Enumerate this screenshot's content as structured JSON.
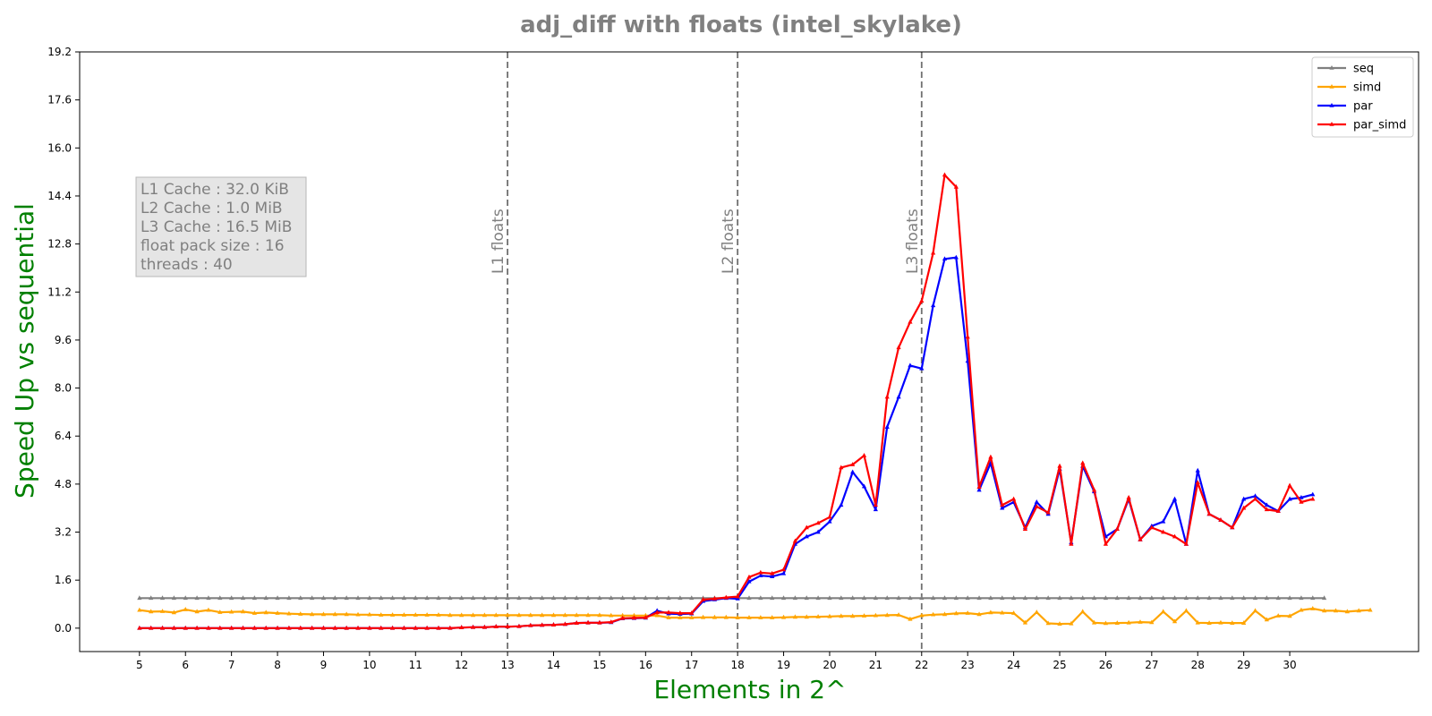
{
  "chart_data": {
    "type": "line",
    "title": "adj_diff with floats  (intel_skylake)",
    "xlabel": "Elements in 2^",
    "ylabel": "Speed Up vs sequential",
    "xlim": [
      3.7,
      32.8
    ],
    "ylim": [
      -0.78,
      19.2
    ],
    "x_ticks": [
      5,
      6,
      7,
      8,
      9,
      10,
      11,
      12,
      13,
      14,
      15,
      16,
      17,
      18,
      19,
      20,
      21,
      22,
      23,
      24,
      25,
      26,
      27,
      28,
      29,
      30
    ],
    "y_ticks": [
      0.0,
      1.6,
      3.2,
      4.8,
      6.4,
      8.0,
      9.6,
      11.2,
      12.8,
      14.4,
      16.0,
      17.6,
      19.2
    ],
    "y_tick_labels": [
      "0.0",
      "1.6",
      "3.2",
      "4.8",
      "6.4",
      "8.0",
      "9.6",
      "11.2",
      "12.8",
      "14.4",
      "16.0",
      "17.6",
      "19.2"
    ],
    "x_start": 5,
    "x_step": 0.25,
    "legend_position": "top-right",
    "grid": false,
    "vlines": [
      {
        "x": 13,
        "label": "L1 floats"
      },
      {
        "x": 18,
        "label": "L2 floats"
      },
      {
        "x": 22,
        "label": "L3 floats"
      }
    ],
    "info_box": [
      "L1 Cache : 32.0 KiB",
      "L2 Cache : 1.0 MiB",
      "L3 Cache : 16.5 MiB",
      "float pack size : 16",
      "threads : 40"
    ],
    "series": [
      {
        "name": "seq",
        "color": "#808080",
        "values": [
          1.0,
          1.0,
          1.0,
          1.0,
          1.0,
          1.0,
          1.0,
          1.0,
          1.0,
          1.0,
          1.0,
          1.0,
          1.0,
          1.0,
          1.0,
          1.0,
          1.0,
          1.0,
          1.0,
          1.0,
          1.0,
          1.0,
          1.0,
          1.0,
          1.0,
          1.0,
          1.0,
          1.0,
          1.0,
          1.0,
          1.0,
          1.0,
          1.0,
          1.0,
          1.0,
          1.0,
          1.0,
          1.0,
          1.0,
          1.0,
          1.0,
          1.0,
          1.0,
          1.0,
          1.0,
          1.0,
          1.0,
          1.0,
          1.0,
          1.0,
          1.0,
          1.0,
          1.0,
          1.0,
          1.0,
          1.0,
          1.0,
          1.0,
          1.0,
          1.0,
          1.0,
          1.0,
          1.0,
          1.0,
          1.0,
          1.0,
          1.0,
          1.0,
          1.0,
          1.0,
          1.0,
          1.0,
          1.0,
          1.0,
          1.0,
          1.0,
          1.0,
          1.0,
          1.0,
          1.0,
          1.0,
          1.0,
          1.0,
          1.0,
          1.0,
          1.0,
          1.0,
          1.0,
          1.0,
          1.0,
          1.0,
          1.0,
          1.0,
          1.0,
          1.0,
          1.0,
          1.0,
          1.0,
          1.0,
          1.0,
          1.0,
          1.0,
          1.0,
          1.0
        ]
      },
      {
        "name": "simd",
        "color": "#ffa500",
        "values": [
          0.6,
          0.55,
          0.56,
          0.52,
          0.62,
          0.55,
          0.6,
          0.53,
          0.54,
          0.55,
          0.5,
          0.52,
          0.5,
          0.48,
          0.47,
          0.46,
          0.46,
          0.46,
          0.46,
          0.45,
          0.45,
          0.44,
          0.44,
          0.44,
          0.44,
          0.44,
          0.44,
          0.43,
          0.43,
          0.43,
          0.43,
          0.43,
          0.43,
          0.43,
          0.43,
          0.43,
          0.43,
          0.43,
          0.43,
          0.43,
          0.43,
          0.42,
          0.42,
          0.42,
          0.42,
          0.42,
          0.35,
          0.35,
          0.35,
          0.36,
          0.36,
          0.36,
          0.35,
          0.35,
          0.35,
          0.35,
          0.36,
          0.37,
          0.37,
          0.38,
          0.39,
          0.4,
          0.4,
          0.41,
          0.42,
          0.43,
          0.44,
          0.3,
          0.42,
          0.45,
          0.46,
          0.49,
          0.5,
          0.46,
          0.52,
          0.51,
          0.5,
          0.18,
          0.53,
          0.16,
          0.14,
          0.15,
          0.55,
          0.18,
          0.16,
          0.17,
          0.18,
          0.2,
          0.19,
          0.55,
          0.22,
          0.58,
          0.18,
          0.17,
          0.18,
          0.17,
          0.17,
          0.58,
          0.28,
          0.41,
          0.4,
          0.6,
          0.65,
          0.58,
          0.58,
          0.55,
          0.58,
          0.6
        ]
      },
      {
        "name": "par",
        "color": "#0000ff",
        "values": [
          0.0,
          0.0,
          0.0,
          0.0,
          0.0,
          0.0,
          0.0,
          0.0,
          0.0,
          0.0,
          0.0,
          0.0,
          0.0,
          0.0,
          0.0,
          0.0,
          0.0,
          0.0,
          0.0,
          0.0,
          0.0,
          0.0,
          0.0,
          0.0,
          0.0,
          0.0,
          0.0,
          0.0,
          0.02,
          0.03,
          0.03,
          0.05,
          0.05,
          0.06,
          0.09,
          0.1,
          0.11,
          0.13,
          0.17,
          0.18,
          0.18,
          0.19,
          0.32,
          0.33,
          0.34,
          0.58,
          0.48,
          0.47,
          0.48,
          0.9,
          0.95,
          1.0,
          0.98,
          1.55,
          1.75,
          1.72,
          1.82,
          2.8,
          3.05,
          3.2,
          3.55,
          4.1,
          5.2,
          4.72,
          3.95,
          6.7,
          7.7,
          8.75,
          8.65,
          10.75,
          12.3,
          12.35,
          8.9,
          4.6,
          5.5,
          4.0,
          4.2,
          3.35,
          4.2,
          3.8,
          5.3,
          2.85,
          5.4,
          4.55,
          3.05,
          3.3,
          4.3,
          2.95,
          3.4,
          3.55,
          4.3,
          2.8,
          5.25,
          3.8,
          3.6,
          3.35,
          4.3,
          4.4,
          4.1,
          3.9,
          4.3,
          4.35,
          4.45
        ]
      },
      {
        "name": "par_simd",
        "color": "#ff0000",
        "values": [
          0.0,
          0.0,
          0.0,
          0.0,
          0.0,
          0.0,
          0.0,
          0.0,
          0.0,
          0.0,
          0.0,
          0.0,
          0.0,
          0.0,
          0.0,
          0.0,
          0.0,
          0.0,
          0.0,
          0.0,
          0.0,
          0.0,
          0.0,
          0.0,
          0.0,
          0.0,
          0.0,
          0.0,
          0.02,
          0.03,
          0.03,
          0.05,
          0.05,
          0.06,
          0.09,
          0.1,
          0.11,
          0.13,
          0.17,
          0.18,
          0.18,
          0.2,
          0.33,
          0.34,
          0.35,
          0.52,
          0.52,
          0.5,
          0.5,
          0.95,
          0.98,
          1.02,
          1.05,
          1.7,
          1.85,
          1.82,
          1.95,
          2.9,
          3.35,
          3.5,
          3.7,
          5.35,
          5.45,
          5.75,
          4.1,
          7.7,
          9.35,
          10.2,
          10.9,
          12.5,
          15.1,
          14.7,
          9.7,
          4.7,
          5.7,
          4.1,
          4.3,
          3.3,
          4.05,
          3.85,
          5.4,
          2.8,
          5.5,
          4.6,
          2.8,
          3.3,
          4.35,
          2.95,
          3.35,
          3.2,
          3.05,
          2.8,
          4.85,
          3.8,
          3.6,
          3.35,
          4.0,
          4.3,
          3.95,
          3.9,
          4.75,
          4.2,
          4.3
        ]
      }
    ]
  }
}
